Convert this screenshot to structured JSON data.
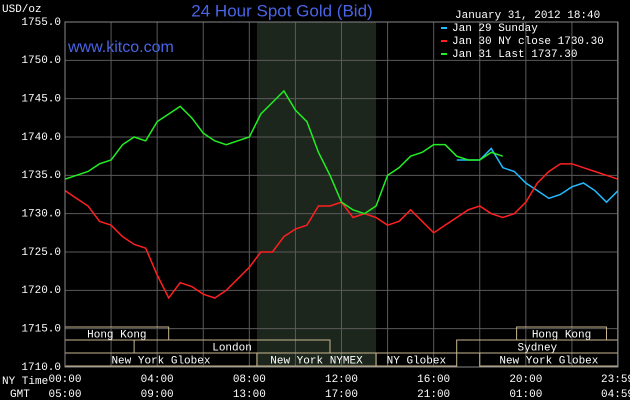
{
  "chart_data": {
    "type": "line",
    "title": "24 Hour Spot Gold (Bid)",
    "date": "January 31, 2012 18:40",
    "watermark": "www.kitco.com",
    "ylabel": "USD/oz",
    "xlabel": "NY Time",
    "x2label": "GMT",
    "xlim": [
      0,
      24
    ],
    "ylim": [
      1710,
      1755
    ],
    "yticks": [
      {
        "value": 1710,
        "label": "1710.0"
      },
      {
        "value": 1715,
        "label": "1715.0"
      },
      {
        "value": 1720,
        "label": "1720.0"
      },
      {
        "value": 1725,
        "label": "1725.0"
      },
      {
        "value": 1730,
        "label": "1730.0"
      },
      {
        "value": 1735,
        "label": "1735.0"
      },
      {
        "value": 1740,
        "label": "1740.0"
      },
      {
        "value": 1745,
        "label": "1745.0"
      },
      {
        "value": 1750,
        "label": "1750.0"
      },
      {
        "value": 1755,
        "label": "1755.0"
      }
    ],
    "xticks": [
      {
        "value": 0,
        "label": "00:00"
      },
      {
        "value": 4,
        "label": "04:00"
      },
      {
        "value": 8,
        "label": "08:00"
      },
      {
        "value": 12,
        "label": "12:00"
      },
      {
        "value": 16,
        "label": "16:00"
      },
      {
        "value": 20,
        "label": "20:00"
      },
      {
        "value": 23.98,
        "label": "23:59"
      }
    ],
    "x2ticks": [
      {
        "value": 0,
        "label": "05:00"
      },
      {
        "value": 4,
        "label": "09:00"
      },
      {
        "value": 8,
        "label": "13:00"
      },
      {
        "value": 12,
        "label": "17:00"
      },
      {
        "value": 16,
        "label": "21:00"
      },
      {
        "value": 20,
        "label": "01:00"
      },
      {
        "value": 23.98,
        "label": "04:59"
      }
    ],
    "xminor_ticks": [
      2,
      6,
      10,
      14,
      18,
      22
    ],
    "grid": true,
    "sessions": [
      {
        "label": "Hong Kong",
        "row": 0,
        "start": 0,
        "end": 4.5
      },
      {
        "label": "Hong Kong",
        "row": 0,
        "start": 19.6,
        "end": 23.5
      },
      {
        "label": "London",
        "row": 1,
        "start": 3,
        "end": 11.5
      },
      {
        "label": "Sydney",
        "row": 1,
        "start": 17,
        "end": 24
      },
      {
        "label": "New York Globex",
        "row": 2,
        "start": 0,
        "end": 8.33
      },
      {
        "label": "New York NYMEX",
        "row": 2,
        "start": 8.33,
        "end": 13.5,
        "shaded": true
      },
      {
        "label": "NY Globex",
        "row": 2,
        "start": 13.5,
        "end": 17
      },
      {
        "label": "New York Globex",
        "row": 2,
        "start": 18,
        "end": 24
      }
    ],
    "x": [
      0,
      0.5,
      1,
      1.5,
      2,
      2.5,
      3,
      3.5,
      4,
      4.5,
      5,
      5.5,
      6,
      6.5,
      7,
      7.5,
      8,
      8.5,
      9,
      9.5,
      10,
      10.5,
      11,
      11.5,
      12,
      12.5,
      13,
      13.5,
      14,
      14.5,
      15,
      15.5,
      16,
      16.5,
      17,
      17.5,
      18,
      18.5,
      19,
      19.5,
      20,
      20.5,
      21,
      21.5,
      22,
      22.5,
      23,
      23.5,
      24
    ],
    "series": [
      {
        "name": "Jan 29 Sunday",
        "color": "#22bbff",
        "values": [
          null,
          null,
          null,
          null,
          null,
          null,
          null,
          null,
          null,
          null,
          null,
          null,
          null,
          null,
          null,
          null,
          null,
          null,
          null,
          null,
          null,
          null,
          null,
          null,
          null,
          null,
          null,
          null,
          null,
          null,
          null,
          null,
          null,
          null,
          1737,
          1737,
          1737,
          1738.5,
          1736,
          1735.5,
          1734,
          1733,
          1732,
          1732.5,
          1733.5,
          1734,
          1733,
          1731.5,
          1733
        ]
      },
      {
        "name": "Jan 30 NY close 1730.30",
        "color": "#ff2020",
        "values": [
          1733,
          1732,
          1731,
          1729,
          1728.5,
          1727,
          1726,
          1725.5,
          1722,
          1719,
          1721,
          1720.5,
          1719.5,
          1719,
          1720,
          1721.5,
          1723,
          1725,
          1725,
          1727,
          1728,
          1728.5,
          1731,
          1731,
          1731.5,
          1729.5,
          1730,
          1729.5,
          1728.5,
          1729,
          1730.5,
          1729,
          1727.5,
          1728.5,
          1729.5,
          1730.5,
          1731,
          1730,
          1729.5,
          1730,
          1731.5,
          1734,
          1735.5,
          1736.5,
          1736.5,
          1736,
          1735.5,
          1735,
          1734.5
        ]
      },
      {
        "name": "Jan 31 Last 1737.30",
        "color": "#22ee22",
        "values": [
          1734.5,
          1735,
          1735.5,
          1736.5,
          1737,
          1739,
          1740,
          1739.5,
          1742,
          1743,
          1744,
          1742.5,
          1740.5,
          1739.5,
          1739,
          1739.5,
          1740,
          1743,
          1744.5,
          1746,
          1743.5,
          1742,
          1738,
          1735,
          1731.5,
          1730.5,
          1730,
          1731,
          1735,
          1736,
          1737.5,
          1738,
          1739,
          1739,
          1737.5,
          1737,
          1737,
          1738,
          1737.5,
          null,
          null,
          null,
          null,
          null,
          null,
          null,
          null,
          null,
          null
        ]
      }
    ]
  }
}
